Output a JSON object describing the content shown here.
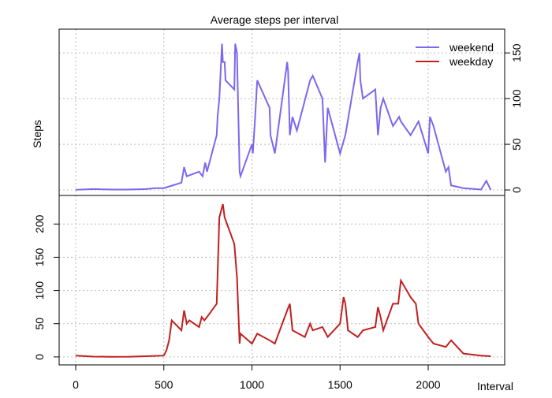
{
  "chart_data": [
    {
      "type": "line",
      "title": "Average steps per interval",
      "y_label": "Steps",
      "legend": "top-right",
      "grid": true,
      "yaxis_side": "right",
      "xlim": [
        -94,
        2434
      ],
      "ylim": [
        -6,
        176
      ],
      "yticks": [
        0,
        50,
        100,
        150
      ],
      "x": [
        0,
        100,
        200,
        300,
        400,
        450,
        500,
        550,
        600,
        615,
        630,
        700,
        720,
        735,
        745,
        800,
        805,
        815,
        830,
        835,
        845,
        850,
        900,
        905,
        915,
        930,
        935,
        1000,
        1005,
        1015,
        1030,
        1100,
        1105,
        1130,
        1200,
        1205,
        1215,
        1230,
        1255,
        1330,
        1345,
        1400,
        1415,
        1430,
        1500,
        1530,
        1600,
        1610,
        1615,
        1630,
        1700,
        1715,
        1730,
        1745,
        1800,
        1835,
        1845,
        1900,
        1945,
        2000,
        2010,
        2030,
        2100,
        2115,
        2130,
        2200,
        2300,
        2330,
        2355
      ],
      "series": [
        {
          "name": "weekend",
          "color": "#7b68ee",
          "values": [
            0.2,
            1,
            0.5,
            0.5,
            1,
            2,
            2,
            5,
            8,
            25,
            15,
            20,
            15,
            30,
            20,
            60,
            80,
            100,
            160,
            140,
            140,
            120,
            110,
            160,
            150,
            20,
            15,
            50,
            40,
            70,
            120,
            90,
            60,
            40,
            140,
            130,
            60,
            80,
            65,
            120,
            125,
            100,
            30,
            90,
            40,
            60,
            140,
            150,
            120,
            100,
            110,
            60,
            90,
            100,
            70,
            80,
            75,
            60,
            75,
            40,
            80,
            70,
            20,
            25,
            5,
            2,
            0.5,
            10,
            0
          ]
        }
      ]
    },
    {
      "type": "line",
      "x_label": "Interval",
      "grid": true,
      "yaxis_side": "left",
      "xlim": [
        -94,
        2434
      ],
      "ylim": [
        -12,
        243
      ],
      "xticks": [
        0,
        500,
        1000,
        1500,
        2000
      ],
      "yticks": [
        0,
        50,
        100,
        150,
        200
      ],
      "x": [
        0,
        100,
        200,
        300,
        400,
        500,
        515,
        530,
        545,
        600,
        615,
        630,
        645,
        700,
        715,
        730,
        745,
        800,
        815,
        835,
        845,
        900,
        915,
        930,
        935,
        1000,
        1030,
        1100,
        1130,
        1200,
        1215,
        1230,
        1300,
        1330,
        1345,
        1400,
        1430,
        1500,
        1520,
        1530,
        1545,
        1600,
        1630,
        1700,
        1715,
        1730,
        1745,
        1800,
        1830,
        1845,
        1900,
        1930,
        1945,
        2000,
        2030,
        2100,
        2130,
        2200,
        2300,
        2355
      ],
      "series": [
        {
          "name": "weekday",
          "color": "#c02020",
          "values": [
            2,
            0.5,
            0.2,
            0.3,
            1,
            2,
            10,
            25,
            55,
            40,
            70,
            50,
            55,
            45,
            60,
            55,
            60,
            80,
            210,
            230,
            210,
            170,
            120,
            20,
            35,
            20,
            35,
            25,
            20,
            70,
            80,
            40,
            30,
            50,
            40,
            45,
            30,
            50,
            90,
            80,
            40,
            30,
            40,
            45,
            75,
            60,
            40,
            80,
            80,
            115,
            90,
            80,
            50,
            30,
            20,
            15,
            25,
            5,
            2,
            1
          ]
        }
      ]
    }
  ]
}
